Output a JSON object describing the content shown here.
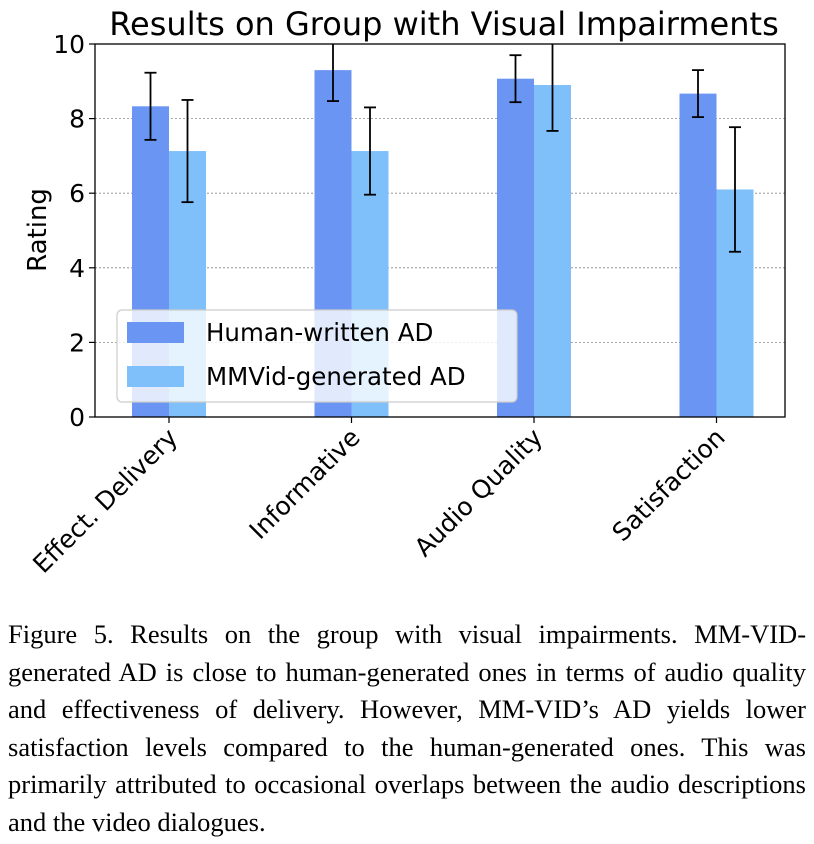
{
  "chart_data": {
    "type": "bar",
    "title": "Results on Group with Visual Impairments",
    "xlabel": "",
    "ylabel": "Rating",
    "ylim": [
      0,
      10
    ],
    "yticks": [
      0,
      2,
      4,
      6,
      8,
      10
    ],
    "grid": "horizontal dashed",
    "legend_position": "lower-left",
    "categories": [
      "Effect. Delivery",
      "Informative",
      "Audio Quality",
      "Satisfaction"
    ],
    "series": [
      {
        "name": "Human-written AD",
        "color": "#6b95f2",
        "values": [
          8.33,
          9.3,
          9.07,
          8.67
        ],
        "error": [
          0.9,
          0.83,
          0.63,
          0.63
        ]
      },
      {
        "name": "MMVid-generated AD",
        "color": "#7fc0fb",
        "values": [
          7.13,
          7.13,
          8.9,
          6.1
        ],
        "error": [
          1.37,
          1.17,
          1.23,
          1.67
        ]
      }
    ]
  },
  "caption": {
    "label": "Figure 5.",
    "text": "Results on the group with visual impairments. MM-VID-generated AD is close to human-generated ones in terms of audio quality and effectiveness of delivery. However, MM-VID’s AD yields lower satisfaction levels compared to the human-generated ones. This was primarily attributed to occasional overlaps between the audio descriptions and the video dialogues."
  }
}
